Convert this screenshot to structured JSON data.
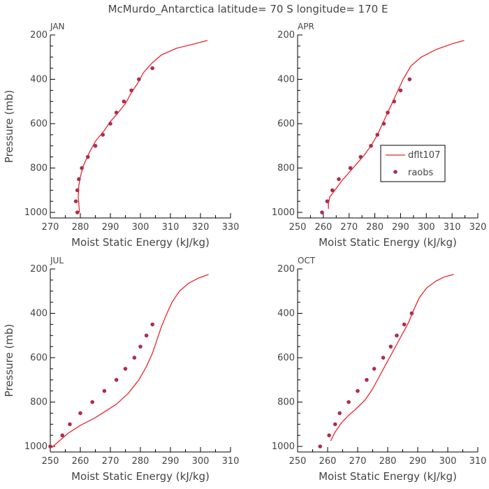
{
  "figure": {
    "title": "McMurdo_Antarctica  latitude= 70 S longitude= 170 E",
    "colors": {
      "model": "#e8262a",
      "obs": "#b02c4e",
      "axis": "#000000",
      "text": "#444444"
    },
    "legend": {
      "placement": "inside right of APR panel",
      "entries": [
        "dflt107",
        "raobs"
      ]
    }
  },
  "chart_data": [
    {
      "type": "line",
      "panel_label": "JAN",
      "xlabel": "Moist Static Energy (kJ/kg)",
      "ylabel": "Pressure (mb)",
      "xlim": [
        270,
        330
      ],
      "xticks": [
        270,
        280,
        290,
        300,
        310,
        320,
        330
      ],
      "ylim": [
        1025,
        200
      ],
      "yticks": [
        200,
        400,
        600,
        800,
        1000
      ],
      "series": [
        {
          "name": "dflt107",
          "kind": "line",
          "points": [
            [
              322.3,
              225
            ],
            [
              318,
              240
            ],
            [
              312,
              260
            ],
            [
              307,
              290
            ],
            [
              304,
              325
            ],
            [
              301,
              370
            ],
            [
              299,
              420
            ],
            [
              297,
              460
            ],
            [
              295,
              510
            ],
            [
              292,
              560
            ],
            [
              290,
              590
            ],
            [
              288,
              630
            ],
            [
              285,
              680
            ],
            [
              283,
              730
            ],
            [
              281,
              790
            ],
            [
              280,
              840
            ],
            [
              279.5,
              880
            ],
            [
              279.3,
              930
            ],
            [
              279.5,
              960
            ],
            [
              279.7,
              1000
            ]
          ]
        },
        {
          "name": "raobs",
          "kind": "scatter",
          "points": [
            [
              304,
              350
            ],
            [
              299.5,
              400
            ],
            [
              297,
              450
            ],
            [
              294.5,
              500
            ],
            [
              292,
              550
            ],
            [
              290,
              600
            ],
            [
              287.5,
              650
            ],
            [
              285,
              700
            ],
            [
              282.5,
              750
            ],
            [
              280.5,
              800
            ],
            [
              279.5,
              850
            ],
            [
              279,
              900
            ],
            [
              278.5,
              950
            ],
            [
              279,
              1000
            ]
          ]
        }
      ]
    },
    {
      "type": "line",
      "panel_label": "APR",
      "xlabel": "Moist Static Energy (kJ/kg)",
      "ylabel": "",
      "xlim": [
        250,
        320
      ],
      "xticks": [
        250,
        260,
        270,
        280,
        290,
        300,
        310,
        320
      ],
      "ylim": [
        1025,
        200
      ],
      "yticks": [
        200,
        400,
        600,
        800,
        1000
      ],
      "series": [
        {
          "name": "dflt107",
          "kind": "line",
          "points": [
            [
              314.7,
              225
            ],
            [
              310,
              240
            ],
            [
              304,
              265
            ],
            [
              298,
              300
            ],
            [
              294,
              340
            ],
            [
              291,
              400
            ],
            [
              289,
              450
            ],
            [
              287,
              500
            ],
            [
              285,
              550
            ],
            [
              283,
              600
            ],
            [
              281,
              650
            ],
            [
              278.5,
              700
            ],
            [
              276,
              740
            ],
            [
              273,
              780
            ],
            [
              270,
              820
            ],
            [
              267,
              860
            ],
            [
              264.5,
              900
            ],
            [
              262.5,
              930
            ],
            [
              262,
              960
            ],
            [
              262,
              985
            ]
          ]
        },
        {
          "name": "raobs",
          "kind": "scatter",
          "points": [
            [
              293.5,
              400
            ],
            [
              290,
              450
            ],
            [
              287.5,
              500
            ],
            [
              285,
              550
            ],
            [
              283.5,
              600
            ],
            [
              281,
              650
            ],
            [
              278.5,
              700
            ],
            [
              274.5,
              750
            ],
            [
              270.5,
              800
            ],
            [
              266,
              850
            ],
            [
              263.5,
              900
            ],
            [
              261.5,
              950
            ],
            [
              259.5,
              1000
            ]
          ]
        }
      ]
    },
    {
      "type": "line",
      "panel_label": "JUL",
      "xlabel": "Moist Static Energy (kJ/kg)",
      "ylabel": "Pressure (mb)",
      "xlim": [
        250,
        310
      ],
      "xticks": [
        250,
        260,
        270,
        280,
        290,
        300,
        310
      ],
      "ylim": [
        1025,
        200
      ],
      "yticks": [
        200,
        400,
        600,
        800,
        1000
      ],
      "series": [
        {
          "name": "dflt107",
          "kind": "line",
          "points": [
            [
              302.7,
              225
            ],
            [
              299.5,
              240
            ],
            [
              296,
              265
            ],
            [
              293,
              300
            ],
            [
              290.5,
              350
            ],
            [
              288.5,
              410
            ],
            [
              287,
              460
            ],
            [
              285.5,
              520
            ],
            [
              284,
              580
            ],
            [
              282,
              640
            ],
            [
              279.5,
              700
            ],
            [
              276,
              760
            ],
            [
              272,
              810
            ],
            [
              268.5,
              840
            ],
            [
              265,
              870
            ],
            [
              260,
              905
            ],
            [
              256,
              940
            ],
            [
              253,
              975
            ],
            [
              250.5,
              1005
            ]
          ]
        },
        {
          "name": "raobs",
          "kind": "scatter",
          "points": [
            [
              284,
              450
            ],
            [
              282,
              500
            ],
            [
              280,
              550
            ],
            [
              278,
              600
            ],
            [
              275,
              650
            ],
            [
              272,
              700
            ],
            [
              268,
              750
            ],
            [
              264,
              800
            ],
            [
              260,
              850
            ],
            [
              256.5,
              900
            ],
            [
              254,
              950
            ],
            [
              250,
              1000
            ]
          ]
        }
      ]
    },
    {
      "type": "line",
      "panel_label": "OCT",
      "xlabel": "Moist Static Energy (kJ/kg)",
      "ylabel": "",
      "xlim": [
        250,
        310
      ],
      "xticks": [
        250,
        260,
        270,
        280,
        290,
        300,
        310
      ],
      "ylim": [
        1025,
        200
      ],
      "yticks": [
        200,
        400,
        600,
        800,
        1000
      ],
      "series": [
        {
          "name": "dflt107",
          "kind": "line",
          "points": [
            [
              302,
              225
            ],
            [
              299,
              235
            ],
            [
              296,
              255
            ],
            [
              293,
              285
            ],
            [
              290.5,
              330
            ],
            [
              288.5,
              390
            ],
            [
              287,
              440
            ],
            [
              285,
              490
            ],
            [
              283,
              540
            ],
            [
              281,
              590
            ],
            [
              279,
              640
            ],
            [
              277,
              690
            ],
            [
              275,
              740
            ],
            [
              272.5,
              790
            ],
            [
              269.5,
              830
            ],
            [
              267,
              860
            ],
            [
              264.5,
              895
            ],
            [
              262.5,
              935
            ],
            [
              261,
              975
            ]
          ]
        },
        {
          "name": "raobs",
          "kind": "scatter",
          "points": [
            [
              288,
              400
            ],
            [
              285.5,
              450
            ],
            [
              283,
              500
            ],
            [
              281,
              550
            ],
            [
              278.5,
              600
            ],
            [
              275.5,
              650
            ],
            [
              273,
              700
            ],
            [
              270,
              750
            ],
            [
              267,
              800
            ],
            [
              264,
              850
            ],
            [
              262.5,
              900
            ],
            [
              260.5,
              950
            ],
            [
              257.5,
              1000
            ]
          ]
        }
      ]
    }
  ]
}
